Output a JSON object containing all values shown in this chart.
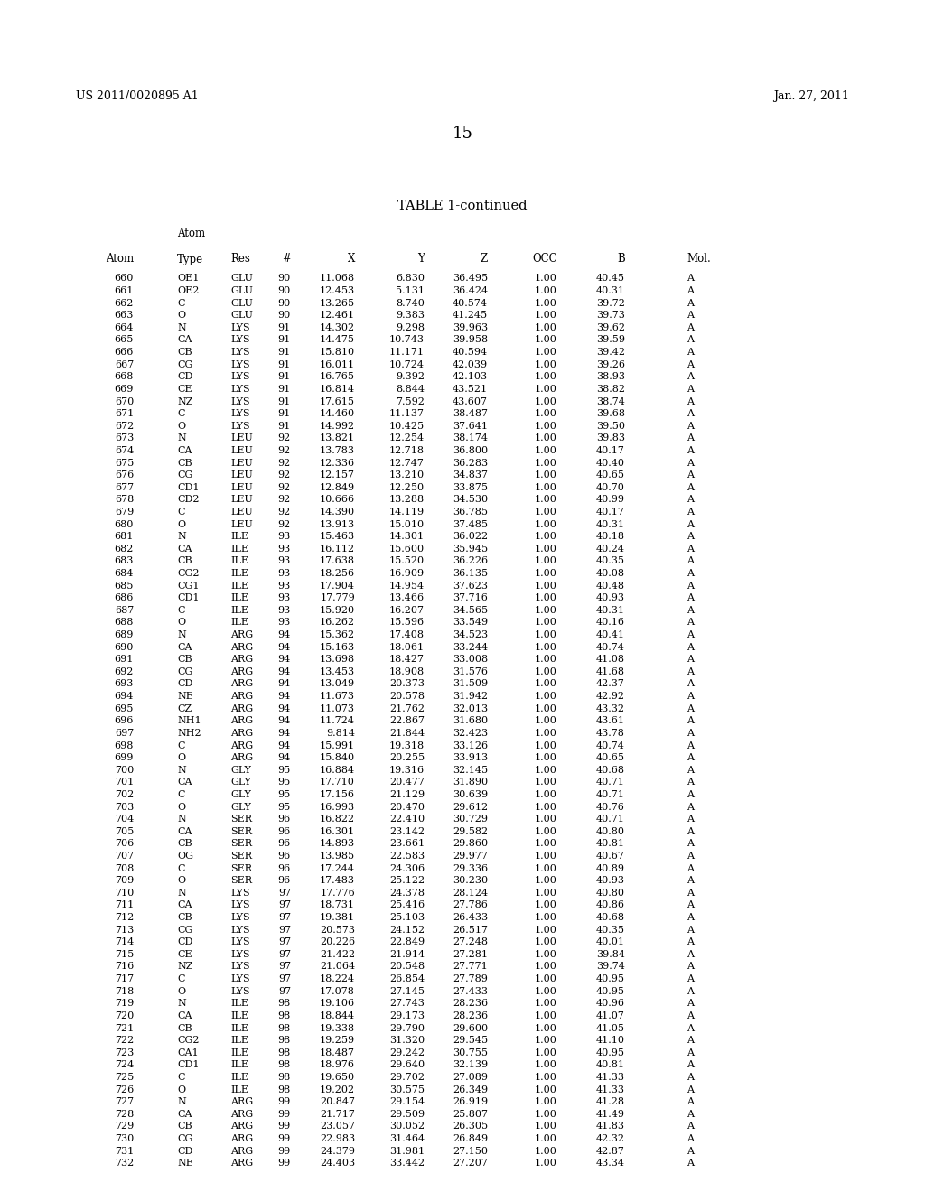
{
  "header_left": "US 2011/0020895 A1",
  "header_right": "Jan. 27, 2011",
  "page_number": "15",
  "table_title": "TABLE 1-continued",
  "col_headers_top": "Atom",
  "col_headers": [
    "Atom",
    "Type",
    "Res",
    "#",
    "X",
    "Y",
    "Z",
    "OCC",
    "B",
    "Mol."
  ],
  "rows": [
    [
      "660",
      "OE1",
      "GLU",
      "90",
      "11.068",
      "6.830",
      "36.495",
      "1.00",
      "40.45",
      "A"
    ],
    [
      "661",
      "OE2",
      "GLU",
      "90",
      "12.453",
      "5.131",
      "36.424",
      "1.00",
      "40.31",
      "A"
    ],
    [
      "662",
      "C",
      "GLU",
      "90",
      "13.265",
      "8.740",
      "40.574",
      "1.00",
      "39.72",
      "A"
    ],
    [
      "663",
      "O",
      "GLU",
      "90",
      "12.461",
      "9.383",
      "41.245",
      "1.00",
      "39.73",
      "A"
    ],
    [
      "664",
      "N",
      "LYS",
      "91",
      "14.302",
      "9.298",
      "39.963",
      "1.00",
      "39.62",
      "A"
    ],
    [
      "665",
      "CA",
      "LYS",
      "91",
      "14.475",
      "10.743",
      "39.958",
      "1.00",
      "39.59",
      "A"
    ],
    [
      "666",
      "CB",
      "LYS",
      "91",
      "15.810",
      "11.171",
      "40.594",
      "1.00",
      "39.42",
      "A"
    ],
    [
      "667",
      "CG",
      "LYS",
      "91",
      "16.011",
      "10.724",
      "42.039",
      "1.00",
      "39.26",
      "A"
    ],
    [
      "668",
      "CD",
      "LYS",
      "91",
      "16.765",
      "9.392",
      "42.103",
      "1.00",
      "38.93",
      "A"
    ],
    [
      "669",
      "CE",
      "LYS",
      "91",
      "16.814",
      "8.844",
      "43.521",
      "1.00",
      "38.82",
      "A"
    ],
    [
      "670",
      "NZ",
      "LYS",
      "91",
      "17.615",
      "7.592",
      "43.607",
      "1.00",
      "38.74",
      "A"
    ],
    [
      "671",
      "C",
      "LYS",
      "91",
      "14.460",
      "11.137",
      "38.487",
      "1.00",
      "39.68",
      "A"
    ],
    [
      "672",
      "O",
      "LYS",
      "91",
      "14.992",
      "10.425",
      "37.641",
      "1.00",
      "39.50",
      "A"
    ],
    [
      "673",
      "N",
      "LEU",
      "92",
      "13.821",
      "12.254",
      "38.174",
      "1.00",
      "39.83",
      "A"
    ],
    [
      "674",
      "CA",
      "LEU",
      "92",
      "13.783",
      "12.718",
      "36.800",
      "1.00",
      "40.17",
      "A"
    ],
    [
      "675",
      "CB",
      "LEU",
      "92",
      "12.336",
      "12.747",
      "36.283",
      "1.00",
      "40.40",
      "A"
    ],
    [
      "676",
      "CG",
      "LEU",
      "92",
      "12.157",
      "13.210",
      "34.837",
      "1.00",
      "40.65",
      "A"
    ],
    [
      "677",
      "CD1",
      "LEU",
      "92",
      "12.849",
      "12.250",
      "33.875",
      "1.00",
      "40.70",
      "A"
    ],
    [
      "678",
      "CD2",
      "LEU",
      "92",
      "10.666",
      "13.288",
      "34.530",
      "1.00",
      "40.99",
      "A"
    ],
    [
      "679",
      "C",
      "LEU",
      "92",
      "14.390",
      "14.119",
      "36.785",
      "1.00",
      "40.17",
      "A"
    ],
    [
      "680",
      "O",
      "LEU",
      "92",
      "13.913",
      "15.010",
      "37.485",
      "1.00",
      "40.31",
      "A"
    ],
    [
      "681",
      "N",
      "ILE",
      "93",
      "15.463",
      "14.301",
      "36.022",
      "1.00",
      "40.18",
      "A"
    ],
    [
      "682",
      "CA",
      "ILE",
      "93",
      "16.112",
      "15.600",
      "35.945",
      "1.00",
      "40.24",
      "A"
    ],
    [
      "683",
      "CB",
      "ILE",
      "93",
      "17.638",
      "15.520",
      "36.226",
      "1.00",
      "40.35",
      "A"
    ],
    [
      "684",
      "CG2",
      "ILE",
      "93",
      "18.256",
      "16.909",
      "36.135",
      "1.00",
      "40.08",
      "A"
    ],
    [
      "685",
      "CG1",
      "ILE",
      "93",
      "17.904",
      "14.954",
      "37.623",
      "1.00",
      "40.48",
      "A"
    ],
    [
      "686",
      "CD1",
      "ILE",
      "93",
      "17.779",
      "13.466",
      "37.716",
      "1.00",
      "40.93",
      "A"
    ],
    [
      "687",
      "C",
      "ILE",
      "93",
      "15.920",
      "16.207",
      "34.565",
      "1.00",
      "40.31",
      "A"
    ],
    [
      "688",
      "O",
      "ILE",
      "93",
      "16.262",
      "15.596",
      "33.549",
      "1.00",
      "40.16",
      "A"
    ],
    [
      "689",
      "N",
      "ARG",
      "94",
      "15.362",
      "17.408",
      "34.523",
      "1.00",
      "40.41",
      "A"
    ],
    [
      "690",
      "CA",
      "ARG",
      "94",
      "15.163",
      "18.061",
      "33.244",
      "1.00",
      "40.74",
      "A"
    ],
    [
      "691",
      "CB",
      "ARG",
      "94",
      "13.698",
      "18.427",
      "33.008",
      "1.00",
      "41.08",
      "A"
    ],
    [
      "692",
      "CG",
      "ARG",
      "94",
      "13.453",
      "18.908",
      "31.576",
      "1.00",
      "41.68",
      "A"
    ],
    [
      "693",
      "CD",
      "ARG",
      "94",
      "13.049",
      "20.373",
      "31.509",
      "1.00",
      "42.37",
      "A"
    ],
    [
      "694",
      "NE",
      "ARG",
      "94",
      "11.673",
      "20.578",
      "31.942",
      "1.00",
      "42.92",
      "A"
    ],
    [
      "695",
      "CZ",
      "ARG",
      "94",
      "11.073",
      "21.762",
      "32.013",
      "1.00",
      "43.32",
      "A"
    ],
    [
      "696",
      "NH1",
      "ARG",
      "94",
      "11.724",
      "22.867",
      "31.680",
      "1.00",
      "43.61",
      "A"
    ],
    [
      "697",
      "NH2",
      "ARG",
      "94",
      "9.814",
      "21.844",
      "32.423",
      "1.00",
      "43.78",
      "A"
    ],
    [
      "698",
      "C",
      "ARG",
      "94",
      "15.991",
      "19.318",
      "33.126",
      "1.00",
      "40.74",
      "A"
    ],
    [
      "699",
      "O",
      "ARG",
      "94",
      "15.840",
      "20.255",
      "33.913",
      "1.00",
      "40.65",
      "A"
    ],
    [
      "700",
      "N",
      "GLY",
      "95",
      "16.884",
      "19.316",
      "32.145",
      "1.00",
      "40.68",
      "A"
    ],
    [
      "701",
      "CA",
      "GLY",
      "95",
      "17.710",
      "20.477",
      "31.890",
      "1.00",
      "40.71",
      "A"
    ],
    [
      "702",
      "C",
      "GLY",
      "95",
      "17.156",
      "21.129",
      "30.639",
      "1.00",
      "40.71",
      "A"
    ],
    [
      "703",
      "O",
      "GLY",
      "95",
      "16.993",
      "20.470",
      "29.612",
      "1.00",
      "40.76",
      "A"
    ],
    [
      "704",
      "N",
      "SER",
      "96",
      "16.822",
      "22.410",
      "30.729",
      "1.00",
      "40.71",
      "A"
    ],
    [
      "705",
      "CA",
      "SER",
      "96",
      "16.301",
      "23.142",
      "29.582",
      "1.00",
      "40.80",
      "A"
    ],
    [
      "706",
      "CB",
      "SER",
      "96",
      "14.893",
      "23.661",
      "29.860",
      "1.00",
      "40.81",
      "A"
    ],
    [
      "707",
      "OG",
      "SER",
      "96",
      "13.985",
      "22.583",
      "29.977",
      "1.00",
      "40.67",
      "A"
    ],
    [
      "708",
      "C",
      "SER",
      "96",
      "17.244",
      "24.306",
      "29.336",
      "1.00",
      "40.89",
      "A"
    ],
    [
      "709",
      "O",
      "SER",
      "96",
      "17.483",
      "25.122",
      "30.230",
      "1.00",
      "40.93",
      "A"
    ],
    [
      "710",
      "N",
      "LYS",
      "97",
      "17.776",
      "24.378",
      "28.124",
      "1.00",
      "40.80",
      "A"
    ],
    [
      "711",
      "CA",
      "LYS",
      "97",
      "18.731",
      "25.416",
      "27.786",
      "1.00",
      "40.86",
      "A"
    ],
    [
      "712",
      "CB",
      "LYS",
      "97",
      "19.381",
      "25.103",
      "26.433",
      "1.00",
      "40.68",
      "A"
    ],
    [
      "713",
      "CG",
      "LYS",
      "97",
      "20.573",
      "24.152",
      "26.517",
      "1.00",
      "40.35",
      "A"
    ],
    [
      "714",
      "CD",
      "LYS",
      "97",
      "20.226",
      "22.849",
      "27.248",
      "1.00",
      "40.01",
      "A"
    ],
    [
      "715",
      "CE",
      "LYS",
      "97",
      "21.422",
      "21.914",
      "27.281",
      "1.00",
      "39.84",
      "A"
    ],
    [
      "716",
      "NZ",
      "LYS",
      "97",
      "21.064",
      "20.548",
      "27.771",
      "1.00",
      "39.74",
      "A"
    ],
    [
      "717",
      "C",
      "LYS",
      "97",
      "18.224",
      "26.854",
      "27.789",
      "1.00",
      "40.95",
      "A"
    ],
    [
      "718",
      "O",
      "LYS",
      "97",
      "17.078",
      "27.145",
      "27.433",
      "1.00",
      "40.95",
      "A"
    ],
    [
      "719",
      "N",
      "ILE",
      "98",
      "19.106",
      "27.743",
      "28.236",
      "1.00",
      "40.96",
      "A"
    ],
    [
      "720",
      "CA",
      "ILE",
      "98",
      "18.844",
      "29.173",
      "28.236",
      "1.00",
      "41.07",
      "A"
    ],
    [
      "721",
      "CB",
      "ILE",
      "98",
      "19.338",
      "29.790",
      "29.600",
      "1.00",
      "41.05",
      "A"
    ],
    [
      "722",
      "CG2",
      "ILE",
      "98",
      "19.259",
      "31.320",
      "29.545",
      "1.00",
      "41.10",
      "A"
    ],
    [
      "723",
      "CA1",
      "ILE",
      "98",
      "18.487",
      "29.242",
      "30.755",
      "1.00",
      "40.95",
      "A"
    ],
    [
      "724",
      "CD1",
      "ILE",
      "98",
      "18.976",
      "29.640",
      "32.139",
      "1.00",
      "40.81",
      "A"
    ],
    [
      "725",
      "C",
      "ILE",
      "98",
      "19.650",
      "29.702",
      "27.089",
      "1.00",
      "41.33",
      "A"
    ],
    [
      "726",
      "O",
      "ILE",
      "98",
      "19.202",
      "30.575",
      "26.349",
      "1.00",
      "41.33",
      "A"
    ],
    [
      "727",
      "N",
      "ARG",
      "99",
      "20.847",
      "29.154",
      "26.919",
      "1.00",
      "41.28",
      "A"
    ],
    [
      "728",
      "CA",
      "ARG",
      "99",
      "21.717",
      "29.509",
      "25.807",
      "1.00",
      "41.49",
      "A"
    ],
    [
      "729",
      "CB",
      "ARG",
      "99",
      "23.057",
      "30.052",
      "26.305",
      "1.00",
      "41.83",
      "A"
    ],
    [
      "730",
      "CG",
      "ARG",
      "99",
      "22.983",
      "31.464",
      "26.849",
      "1.00",
      "42.32",
      "A"
    ],
    [
      "731",
      "CD",
      "ARG",
      "99",
      "24.379",
      "31.981",
      "27.150",
      "1.00",
      "42.87",
      "A"
    ],
    [
      "732",
      "NE",
      "ARG",
      "99",
      "24.403",
      "33.442",
      "27.207",
      "1.00",
      "43.34",
      "A"
    ]
  ],
  "bg_color": "#ffffff",
  "text_color": "#000000",
  "font_size_header": 9.0,
  "font_size_page": 13.0,
  "font_size_title": 10.5,
  "font_size_col": 8.5,
  "font_size_data": 8.0
}
